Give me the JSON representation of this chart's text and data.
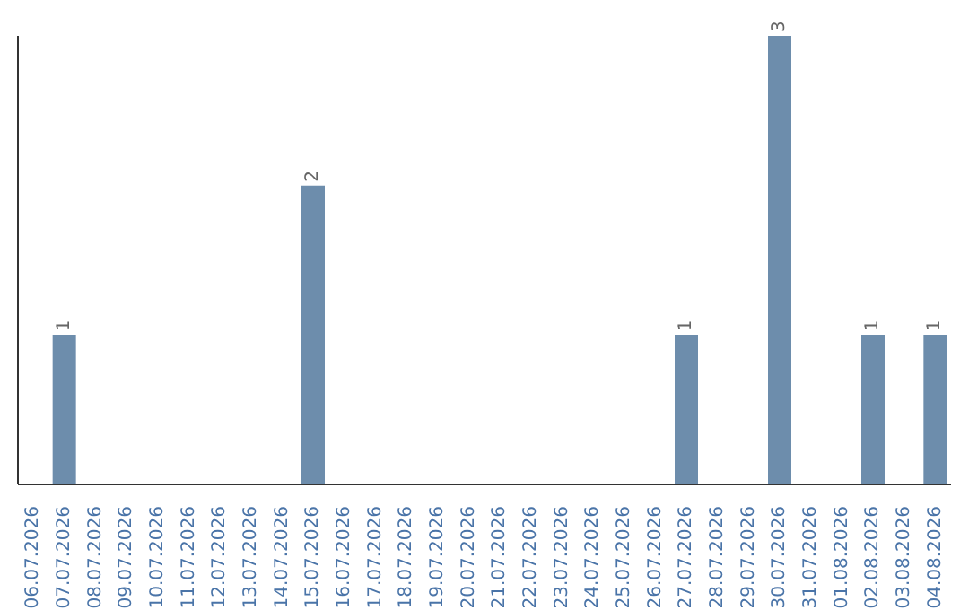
{
  "chart_data": {
    "type": "bar",
    "categories": [
      "06.07.2026",
      "07.07.2026",
      "08.07.2026",
      "09.07.2026",
      "10.07.2026",
      "11.07.2026",
      "12.07.2026",
      "13.07.2026",
      "14.07.2026",
      "15.07.2026",
      "16.07.2026",
      "17.07.2026",
      "18.07.2026",
      "19.07.2026",
      "20.07.2026",
      "21.07.2026",
      "22.07.2026",
      "23.07.2026",
      "24.07.2026",
      "25.07.2026",
      "26.07.2026",
      "27.07.2026",
      "28.07.2026",
      "29.07.2026",
      "30.07.2026",
      "31.07.2026",
      "01.08.2026",
      "02.08.2026",
      "03.08.2026",
      "04.08.2026"
    ],
    "values": [
      0,
      1,
      0,
      0,
      0,
      0,
      0,
      0,
      0,
      2,
      0,
      0,
      0,
      0,
      0,
      0,
      0,
      0,
      0,
      0,
      0,
      1,
      0,
      0,
      3,
      0,
      0,
      1,
      0,
      1
    ],
    "value_labels": [
      null,
      "1",
      null,
      null,
      null,
      null,
      null,
      null,
      null,
      "2",
      null,
      null,
      null,
      null,
      null,
      null,
      null,
      null,
      null,
      null,
      null,
      "1",
      null,
      null,
      "3",
      null,
      null,
      "1",
      null,
      "1"
    ],
    "color": "#6d8dac",
    "grid": false,
    "legend": false
  }
}
